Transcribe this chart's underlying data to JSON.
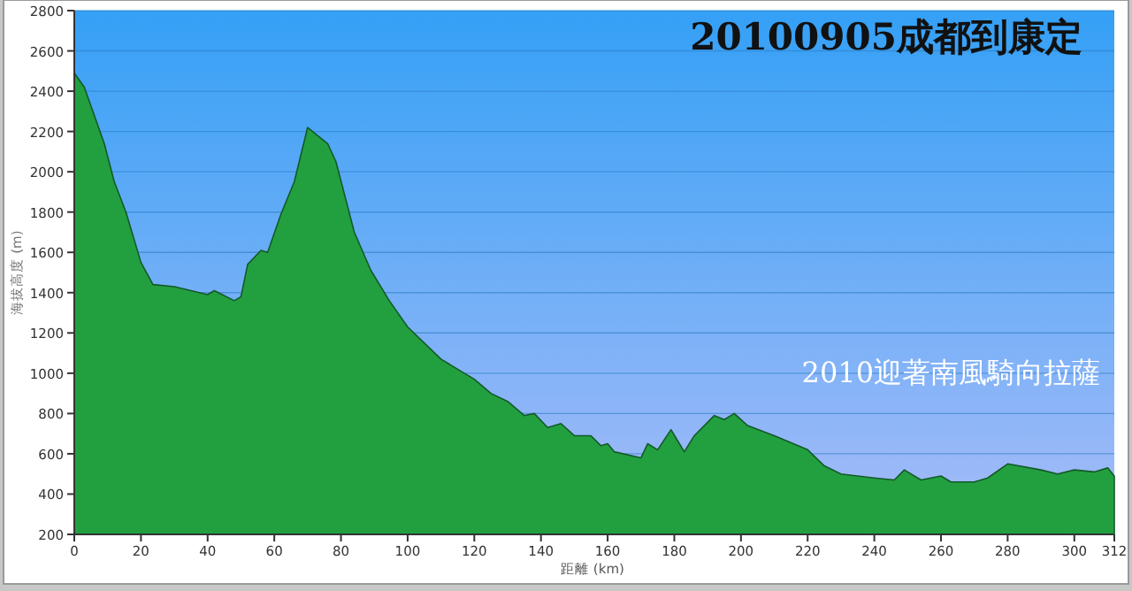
{
  "chart_data": {
    "type": "area",
    "title": "20100905成都到康定",
    "annotations": [
      "2010迎著南風騎向拉薩"
    ],
    "xlabel": "距離 (km)",
    "ylabel": "海拔高度 (m)",
    "x": [
      0,
      3,
      9,
      12,
      15.5,
      20,
      23.6,
      30,
      40,
      42,
      48,
      50,
      52,
      56,
      58,
      62,
      66,
      70,
      76,
      78.5,
      84,
      89,
      94.5,
      100,
      110,
      120,
      125,
      130,
      135,
      138,
      142,
      146,
      150,
      155,
      158,
      160,
      162,
      170,
      172,
      175,
      179,
      183,
      186,
      192,
      195,
      198,
      202,
      210,
      220,
      225,
      230,
      240,
      246,
      249,
      254,
      260,
      263,
      270,
      274,
      280,
      290,
      295,
      300,
      306,
      310,
      312
    ],
    "series": [
      {
        "color": "#22a040",
        "values": [
          2490,
          2420,
          2140,
          1950,
          1800,
          1550,
          1440,
          1430,
          1390,
          1410,
          1360,
          1380,
          1540,
          1610,
          1600,
          1790,
          1950,
          2220,
          2140,
          2050,
          1700,
          1510,
          1360,
          1230,
          1070,
          970,
          900,
          860,
          790,
          800,
          730,
          750,
          690,
          690,
          640,
          650,
          610,
          580,
          650,
          620,
          720,
          610,
          690,
          790,
          770,
          800,
          740,
          690,
          620,
          540,
          500,
          480,
          470,
          520,
          470,
          490,
          460,
          460,
          480,
          550,
          520,
          500,
          520,
          510,
          530,
          490
        ]
      }
    ],
    "xlim": [
      0,
      312
    ],
    "xticks": [
      0,
      20,
      40,
      60,
      80,
      100,
      120,
      140,
      160,
      180,
      200,
      220,
      240,
      260,
      280,
      300,
      312
    ],
    "ylim": [
      200,
      2800
    ],
    "yticks": [
      200,
      400,
      600,
      800,
      1000,
      1200,
      1400,
      1600,
      1800,
      2000,
      2200,
      2400,
      2600,
      2800
    ],
    "grid": "y"
  }
}
